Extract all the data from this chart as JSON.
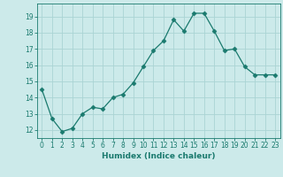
{
  "x": [
    0,
    1,
    2,
    3,
    4,
    5,
    6,
    7,
    8,
    9,
    10,
    11,
    12,
    13,
    14,
    15,
    16,
    17,
    18,
    19,
    20,
    21,
    22,
    23
  ],
  "y": [
    14.5,
    12.7,
    11.9,
    12.1,
    13.0,
    13.4,
    13.3,
    14.0,
    14.2,
    14.9,
    15.9,
    16.9,
    17.5,
    18.8,
    18.1,
    19.2,
    19.2,
    18.1,
    16.9,
    17.0,
    15.9,
    15.4,
    15.4,
    15.4
  ],
  "xlabel": "Humidex (Indice chaleur)",
  "xlim": [
    -0.5,
    23.5
  ],
  "ylim": [
    11.5,
    19.8
  ],
  "yticks": [
    12,
    13,
    14,
    15,
    16,
    17,
    18,
    19
  ],
  "xticks": [
    0,
    1,
    2,
    3,
    4,
    5,
    6,
    7,
    8,
    9,
    10,
    11,
    12,
    13,
    14,
    15,
    16,
    17,
    18,
    19,
    20,
    21,
    22,
    23
  ],
  "line_color": "#1a7a6e",
  "marker": "D",
  "marker_size": 2.5,
  "bg_color": "#cceaea",
  "grid_color": "#aad4d4",
  "axis_color": "#1a7a6e",
  "label_color": "#1a7a6e",
  "tick_color": "#1a7a6e",
  "tick_fontsize": 5.5,
  "xlabel_fontsize": 6.5
}
